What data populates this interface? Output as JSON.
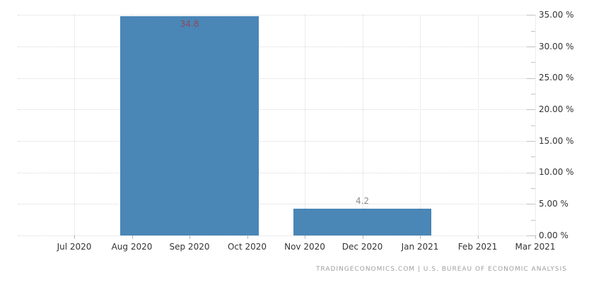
{
  "chart_data": {
    "type": "bar",
    "title": "",
    "source": "TRADINGECONOMICS.COM  |  U.S. BUREAU OF ECONOMIC ANALYSIS",
    "categories": [
      "Jul 2020",
      "Aug 2020",
      "Sep 2020",
      "Oct 2020",
      "Nov 2020",
      "Dec 2020",
      "Jan 2021",
      "Feb 2021",
      "Mar 2021"
    ],
    "y_axis": {
      "side": "right",
      "min": 0,
      "max": 35,
      "step": 5,
      "unit": "%",
      "tick_labels": [
        "35.00 %",
        "30.00 %",
        "25.00 %",
        "20.00 %",
        "15.00 %",
        "10.00 %",
        "5.00 %",
        "0.00 %"
      ],
      "tick_values": [
        35,
        30,
        25,
        20,
        15,
        10,
        5,
        0
      ]
    },
    "bars": [
      {
        "category": "Sep 2020",
        "category_index": 2,
        "value": 34.8,
        "label": "34.8",
        "label_placement": "inside-top",
        "label_color": "#8d4b5c"
      },
      {
        "category": "Dec 2020",
        "category_index": 5,
        "value": 4.2,
        "label": "4.2",
        "label_placement": "above",
        "label_color": "#8c8c8c"
      }
    ],
    "bar_span_months": 2.4,
    "grid": {
      "horizontal": true,
      "vertical": true,
      "style": "dotted"
    },
    "legend": null,
    "colors": {
      "bar": "#4a86b6",
      "grid": "#d9d9d9",
      "axis_text": "#333333",
      "tick": "#c2c2c2",
      "source_text": "#a0a0a0",
      "background": "#ffffff"
    }
  }
}
